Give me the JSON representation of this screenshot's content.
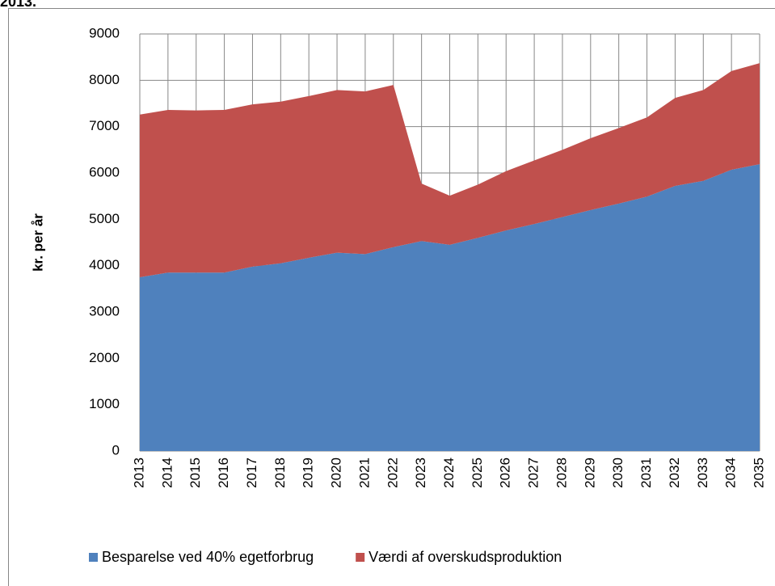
{
  "caption": "2013.",
  "chart_data": {
    "type": "stacked-area",
    "y_label": "kr. per år",
    "categories": [
      "2013",
      "2014",
      "2015",
      "2016",
      "2017",
      "2018",
      "2019",
      "2020",
      "2021",
      "2022",
      "2023",
      "2024",
      "2025",
      "2026",
      "2027",
      "2028",
      "2029",
      "2030",
      "2031",
      "2032",
      "2033",
      "2034",
      "2035"
    ],
    "series": [
      {
        "name": "Besparelse ved 40% egetforbrug",
        "color": "#4f81bd",
        "values": [
          3750,
          3850,
          3850,
          3850,
          3980,
          4050,
          4170,
          4280,
          4250,
          4400,
          4530,
          4450,
          4600,
          4760,
          4900,
          5050,
          5200,
          5340,
          5490,
          5720,
          5830,
          6070,
          6190
        ]
      },
      {
        "name": "Værdi af overskudsproduktion",
        "color": "#c0504d",
        "values": [
          3510,
          3510,
          3500,
          3510,
          3500,
          3490,
          3490,
          3510,
          3510,
          3500,
          1240,
          1060,
          1150,
          1280,
          1370,
          1450,
          1550,
          1630,
          1710,
          1900,
          1960,
          2130,
          2180
        ]
      }
    ],
    "ylim": [
      0,
      9000
    ],
    "yticks": [
      0,
      1000,
      2000,
      3000,
      4000,
      5000,
      6000,
      7000,
      8000,
      9000
    ],
    "grid": true,
    "legend": "bottom"
  }
}
